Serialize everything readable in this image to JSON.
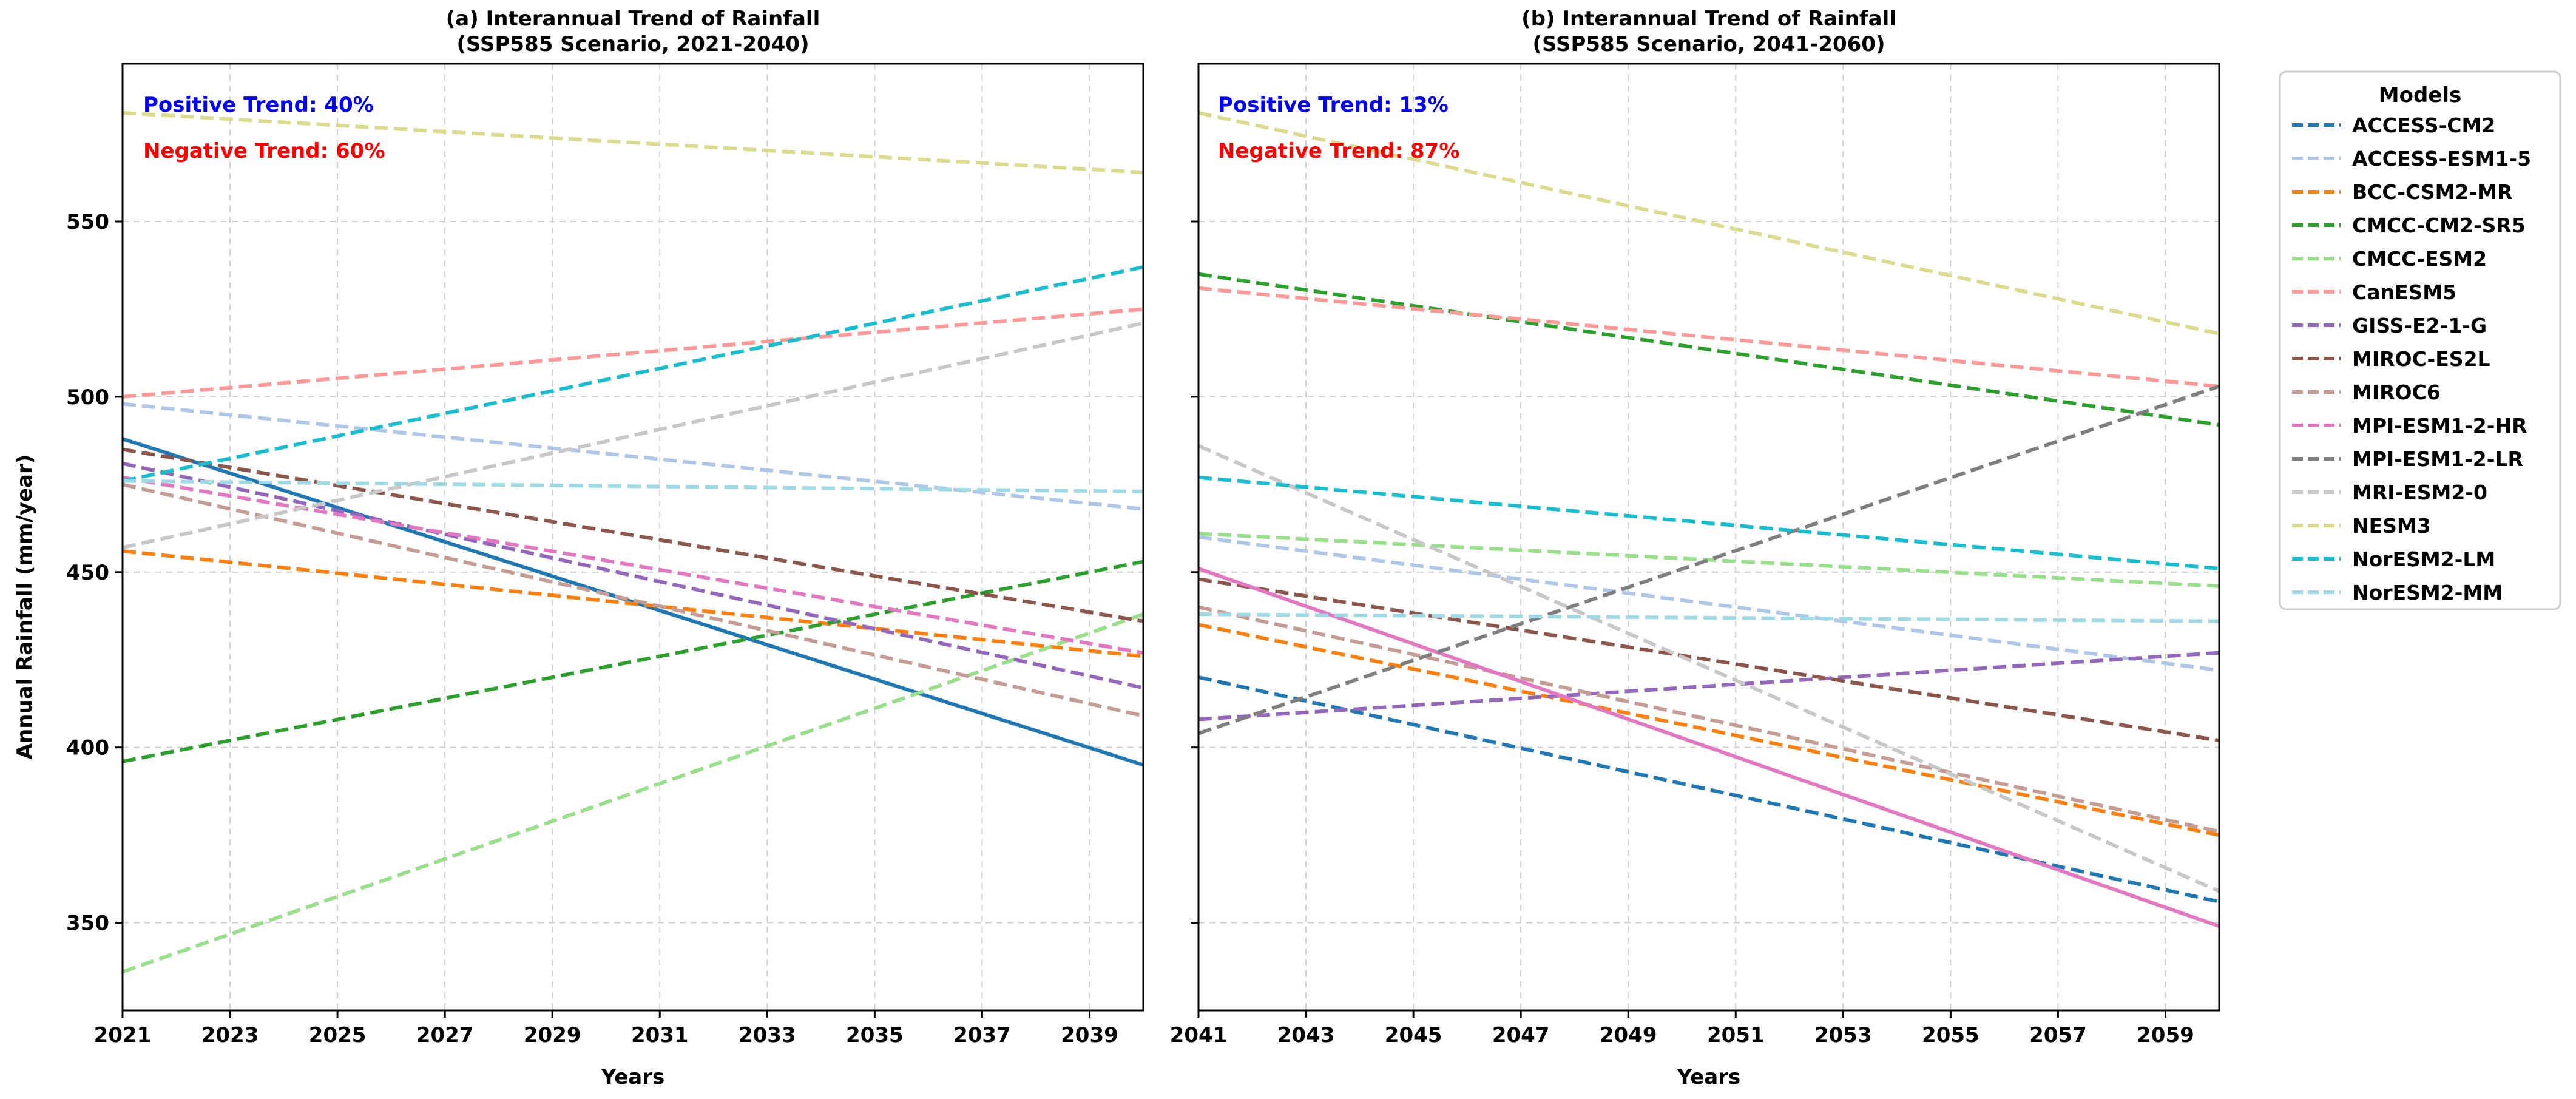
{
  "chart_data": {
    "type": "line",
    "ylabel": "Annual Rainfall (mm/year)",
    "ylim": [
      325,
      595
    ],
    "yticks": [
      350,
      400,
      450,
      500,
      550
    ],
    "legend": {
      "title": "Models",
      "placement": "right",
      "entries": [
        {
          "name": "ACCESS-CM2",
          "color": "#1f77b4"
        },
        {
          "name": "ACCESS-ESM1-5",
          "color": "#aec7e8"
        },
        {
          "name": "BCC-CSM2-MR",
          "color": "#ff7f0e"
        },
        {
          "name": "CMCC-CM2-SR5",
          "color": "#2ca02c"
        },
        {
          "name": "CMCC-ESM2",
          "color": "#98df8a"
        },
        {
          "name": "CanESM5",
          "color": "#ff9896"
        },
        {
          "name": "GISS-E2-1-G",
          "color": "#9467bd"
        },
        {
          "name": "MIROC-ES2L",
          "color": "#8c564b"
        },
        {
          "name": "MIROC6",
          "color": "#c49c94"
        },
        {
          "name": "MPI-ESM1-2-HR",
          "color": "#e377c2"
        },
        {
          "name": "MPI-ESM1-2-LR",
          "color": "#7f7f7f"
        },
        {
          "name": "MRI-ESM2-0",
          "color": "#c7c7c7"
        },
        {
          "name": "NESM3",
          "color": "#dbdb8d"
        },
        {
          "name": "NorESM2-LM",
          "color": "#17becf"
        },
        {
          "name": "NorESM2-MM",
          "color": "#9edae5"
        }
      ]
    },
    "panels": [
      {
        "title_line1": "(a) Interannual Trend of Rainfall",
        "title_line2": "(SSP585 Scenario, 2021-2040)",
        "xlabel": "Years",
        "xlim": [
          2021,
          2040
        ],
        "xticks": [
          2021,
          2023,
          2025,
          2027,
          2029,
          2031,
          2033,
          2035,
          2037,
          2039
        ],
        "positive_trend": "Positive Trend: 40%",
        "negative_trend": "Negative Trend: 60%",
        "series": [
          {
            "name": "ACCESS-CM2",
            "color": "#1f77b4",
            "style": "solid",
            "values": [
              488,
              395
            ]
          },
          {
            "name": "ACCESS-ESM1-5",
            "color": "#aec7e8",
            "style": "dashed",
            "values": [
              498,
              468
            ]
          },
          {
            "name": "BCC-CSM2-MR",
            "color": "#ff7f0e",
            "style": "dashed",
            "values": [
              456,
              426
            ]
          },
          {
            "name": "CMCC-CM2-SR5",
            "color": "#2ca02c",
            "style": "dashed",
            "values": [
              396,
              453
            ]
          },
          {
            "name": "CMCC-ESM2",
            "color": "#98df8a",
            "style": "dashed",
            "values": [
              336,
              438
            ]
          },
          {
            "name": "CanESM5",
            "color": "#ff9896",
            "style": "dashed",
            "values": [
              500,
              525
            ]
          },
          {
            "name": "GISS-E2-1-G",
            "color": "#9467bd",
            "style": "dashed",
            "values": [
              481,
              417
            ]
          },
          {
            "name": "MIROC-ES2L",
            "color": "#8c564b",
            "style": "dashed",
            "values": [
              485,
              436
            ]
          },
          {
            "name": "MIROC6",
            "color": "#c49c94",
            "style": "dashed",
            "values": [
              475,
              409
            ]
          },
          {
            "name": "MPI-ESM1-2-HR",
            "color": "#e377c2",
            "style": "dashed",
            "values": [
              477,
              427
            ]
          },
          {
            "name": "MRI-ESM2-0",
            "color": "#c7c7c7",
            "style": "dashed",
            "values": [
              457,
              521
            ]
          },
          {
            "name": "NESM3",
            "color": "#dbdb8d",
            "style": "dashed",
            "values": [
              581,
              564
            ]
          },
          {
            "name": "NorESM2-LM",
            "color": "#17becf",
            "style": "dashed",
            "values": [
              476,
              537
            ]
          },
          {
            "name": "NorESM2-MM",
            "color": "#9edae5",
            "style": "dashed",
            "values": [
              476,
              473
            ]
          }
        ]
      },
      {
        "title_line1": "(b) Interannual Trend of Rainfall",
        "title_line2": "(SSP585 Scenario, 2041-2060)",
        "xlabel": "Years",
        "xlim": [
          2041,
          2060
        ],
        "xticks": [
          2041,
          2043,
          2045,
          2047,
          2049,
          2051,
          2053,
          2055,
          2057,
          2059
        ],
        "positive_trend": "Positive Trend: 13%",
        "negative_trend": "Negative Trend: 87%",
        "series": [
          {
            "name": "ACCESS-CM2",
            "color": "#1f77b4",
            "style": "dashed",
            "values": [
              420,
              356
            ]
          },
          {
            "name": "ACCESS-ESM1-5",
            "color": "#aec7e8",
            "style": "dashed",
            "values": [
              460,
              422
            ]
          },
          {
            "name": "BCC-CSM2-MR",
            "color": "#ff7f0e",
            "style": "dashed",
            "values": [
              435,
              375
            ]
          },
          {
            "name": "CMCC-CM2-SR5",
            "color": "#2ca02c",
            "style": "dashed",
            "values": [
              535,
              492
            ]
          },
          {
            "name": "CMCC-ESM2",
            "color": "#98df8a",
            "style": "dashed",
            "values": [
              461,
              446
            ]
          },
          {
            "name": "CanESM5",
            "color": "#ff9896",
            "style": "dashed",
            "values": [
              531,
              503
            ]
          },
          {
            "name": "GISS-E2-1-G",
            "color": "#9467bd",
            "style": "dashed",
            "values": [
              408,
              427
            ]
          },
          {
            "name": "MIROC-ES2L",
            "color": "#8c564b",
            "style": "dashed",
            "values": [
              448,
              402
            ]
          },
          {
            "name": "MIROC6",
            "color": "#c49c94",
            "style": "dashed",
            "values": [
              440,
              376
            ]
          },
          {
            "name": "MPI-ESM1-2-HR",
            "color": "#e377c2",
            "style": "solid",
            "values": [
              451,
              349
            ]
          },
          {
            "name": "MPI-ESM1-2-LR",
            "color": "#7f7f7f",
            "style": "dashed",
            "values": [
              404,
              503
            ]
          },
          {
            "name": "MRI-ESM2-0",
            "color": "#c7c7c7",
            "style": "dashed",
            "values": [
              486,
              359
            ]
          },
          {
            "name": "NESM3",
            "color": "#dbdb8d",
            "style": "dashed",
            "values": [
              581,
              518
            ]
          },
          {
            "name": "NorESM2-LM",
            "color": "#17becf",
            "style": "dashed",
            "values": [
              477,
              451
            ]
          },
          {
            "name": "NorESM2-MM",
            "color": "#9edae5",
            "style": "dashed",
            "values": [
              438,
              436
            ]
          }
        ]
      }
    ]
  }
}
